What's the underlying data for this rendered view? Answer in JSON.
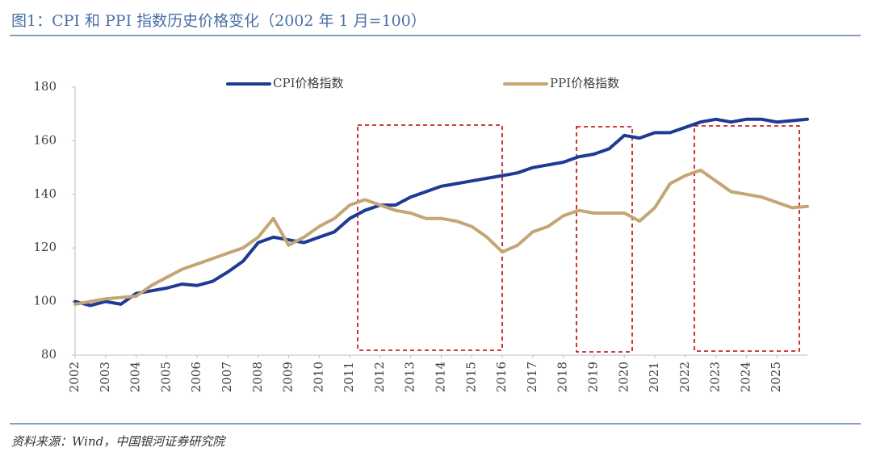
{
  "chart_data": {
    "type": "line",
    "title": "图1：CPI 和 PPI 指数历史价格变化（2002 年 1 月=100）",
    "source": "资料来源：Wind，中国银河证券研究院",
    "x": [
      2002,
      2002.5,
      2003,
      2003.5,
      2004,
      2004.5,
      2005,
      2005.5,
      2006,
      2006.5,
      2007,
      2007.5,
      2008,
      2008.5,
      2009,
      2009.5,
      2010,
      2010.5,
      2011,
      2011.5,
      2012,
      2012.5,
      2013,
      2013.5,
      2014,
      2014.5,
      2015,
      2015.5,
      2016,
      2016.5,
      2017,
      2017.5,
      2018,
      2018.5,
      2019,
      2019.5,
      2020,
      2020.5,
      2021,
      2021.5,
      2022,
      2022.5,
      2023,
      2023.5,
      2024,
      2024.5,
      2025,
      2025.5,
      2026
    ],
    "series": [
      {
        "name": "CPI价格指数",
        "color": "#1f3a93",
        "values": [
          100,
          98.5,
          100,
          99,
          103,
          104,
          105,
          106.5,
          106,
          107.5,
          111,
          115,
          122,
          124,
          123,
          122,
          124,
          126,
          131,
          134,
          136,
          136,
          139,
          141,
          143,
          144,
          145,
          146,
          147,
          148,
          150,
          151,
          152,
          154,
          155,
          157,
          162,
          161,
          163,
          163,
          165,
          167,
          168,
          167,
          168,
          168,
          167,
          167.5,
          168
        ]
      },
      {
        "name": "PPI价格指数",
        "color": "#c4a574",
        "values": [
          99,
          100,
          101,
          101.5,
          102,
          106,
          109,
          112,
          114,
          116,
          118,
          120,
          124,
          131,
          121,
          124,
          128,
          131,
          136,
          138,
          136,
          134,
          133,
          131,
          131,
          130,
          128,
          124,
          118.5,
          121,
          126,
          128,
          132,
          134,
          133,
          133,
          133,
          130,
          135,
          144,
          147,
          149,
          145,
          141,
          140,
          139,
          137,
          135,
          135.5
        ]
      }
    ],
    "xlim": [
      2002,
      2026
    ],
    "xticks": [
      2002,
      2003,
      2004,
      2005,
      2006,
      2007,
      2008,
      2009,
      2010,
      2011,
      2012,
      2013,
      2014,
      2015,
      2016,
      2017,
      2018,
      2019,
      2020,
      2021,
      2022,
      2023,
      2024,
      2025
    ],
    "ylim": [
      80,
      180
    ],
    "yticks": [
      80,
      100,
      120,
      140,
      160,
      180
    ],
    "grid": false
  }
}
